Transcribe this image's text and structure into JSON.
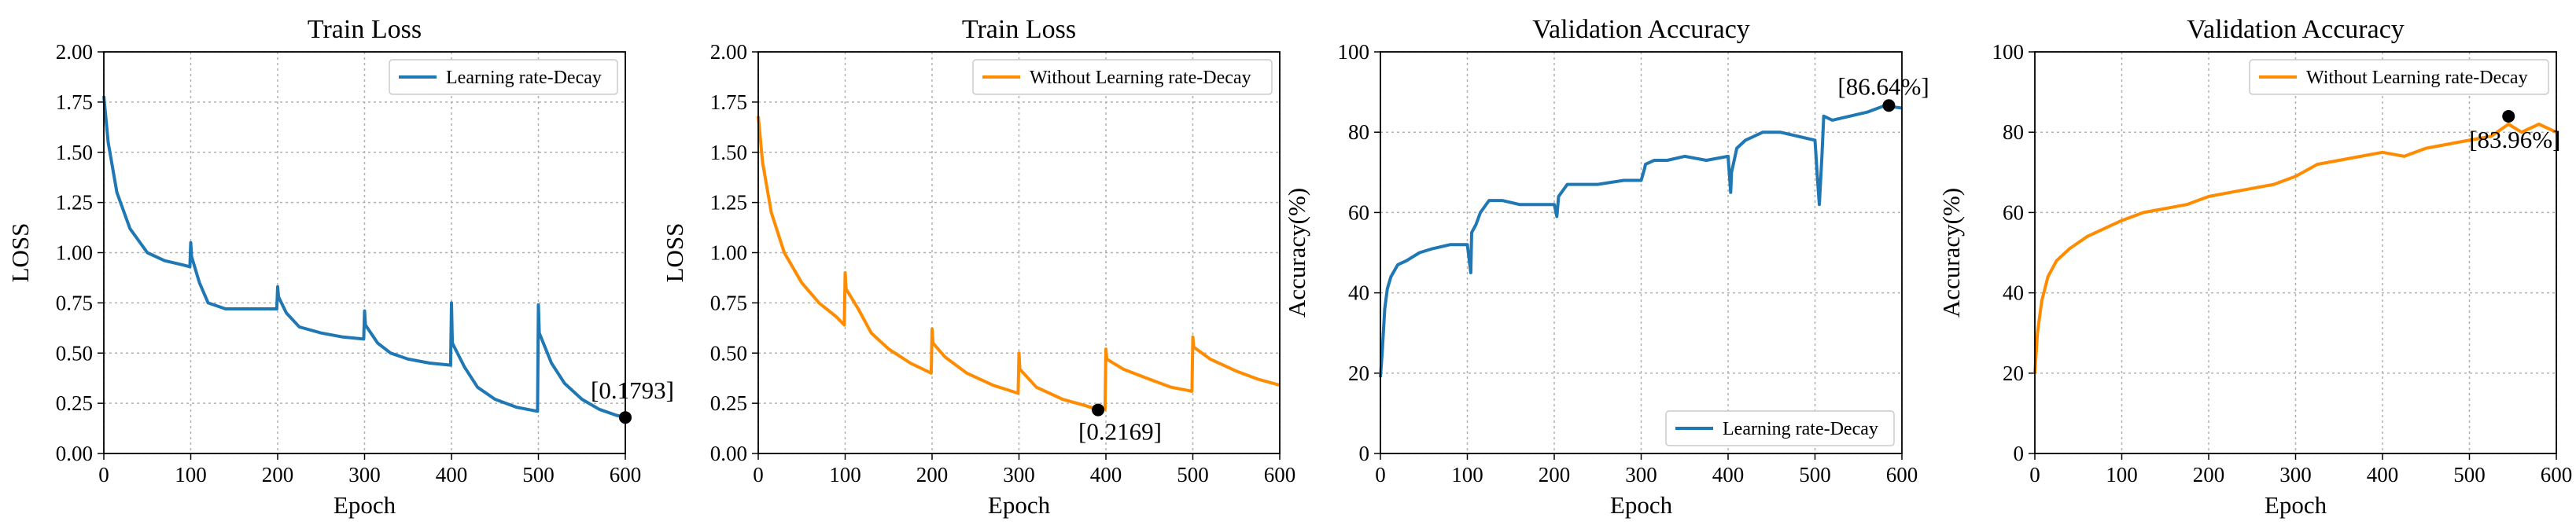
{
  "colors": {
    "blue": "#1f77b4",
    "orange": "#ff8c00",
    "grid": "#b0b0b0",
    "marker": "#000000"
  },
  "chart_data": [
    {
      "type": "line",
      "title": "Train Loss",
      "xlabel": "Epoch",
      "ylabel": "LOSS",
      "xlim": [
        0,
        600
      ],
      "ylim": [
        0,
        2.0
      ],
      "xticks": [
        "0",
        "100",
        "200",
        "300",
        "400",
        "500",
        "600"
      ],
      "yticks": [
        "0.00",
        "0.25",
        "0.50",
        "0.75",
        "1.00",
        "1.25",
        "1.50",
        "1.75",
        "2.00"
      ],
      "grid": true,
      "legend_position": "top-right",
      "series": [
        {
          "name": "Learning rate-Decay",
          "color": "#1f77b4",
          "x": [
            0,
            5,
            15,
            30,
            50,
            70,
            90,
            99,
            100,
            101,
            110,
            120,
            140,
            160,
            180,
            199,
            200,
            201,
            210,
            225,
            250,
            275,
            299,
            300,
            301,
            315,
            330,
            350,
            375,
            399,
            400,
            401,
            415,
            430,
            450,
            475,
            499,
            500,
            501,
            515,
            530,
            550,
            570,
            590,
            600
          ],
          "y": [
            1.78,
            1.55,
            1.3,
            1.12,
            1.0,
            0.96,
            0.94,
            0.93,
            1.05,
            0.98,
            0.85,
            0.75,
            0.72,
            0.72,
            0.72,
            0.72,
            0.83,
            0.78,
            0.7,
            0.63,
            0.6,
            0.58,
            0.57,
            0.71,
            0.64,
            0.55,
            0.5,
            0.47,
            0.45,
            0.44,
            0.75,
            0.55,
            0.43,
            0.33,
            0.27,
            0.23,
            0.21,
            0.74,
            0.6,
            0.45,
            0.35,
            0.27,
            0.22,
            0.19,
            0.18
          ]
        }
      ],
      "annotations": [
        {
          "x": 600,
          "y": 0.1793,
          "text": "[0.1793]"
        }
      ]
    },
    {
      "type": "line",
      "title": "Train Loss",
      "xlabel": "Epoch",
      "ylabel": "LOSS",
      "xlim": [
        0,
        600
      ],
      "ylim": [
        0,
        2.0
      ],
      "xticks": [
        "0",
        "100",
        "200",
        "300",
        "400",
        "500",
        "600"
      ],
      "yticks": [
        "0.00",
        "0.25",
        "0.50",
        "0.75",
        "1.00",
        "1.25",
        "1.50",
        "1.75",
        "2.00"
      ],
      "grid": true,
      "legend_position": "top-right",
      "series": [
        {
          "name": "Without Learning rate-Decay",
          "color": "#ff8c00",
          "x": [
            0,
            5,
            15,
            30,
            50,
            70,
            90,
            99,
            100,
            101,
            115,
            130,
            150,
            175,
            199,
            200,
            201,
            215,
            240,
            270,
            299,
            300,
            301,
            320,
            350,
            375,
            390,
            399,
            400,
            401,
            420,
            450,
            475,
            499,
            500,
            501,
            520,
            550,
            575,
            600
          ],
          "y": [
            1.68,
            1.45,
            1.2,
            1.0,
            0.85,
            0.75,
            0.68,
            0.64,
            0.9,
            0.82,
            0.72,
            0.6,
            0.52,
            0.45,
            0.4,
            0.62,
            0.55,
            0.48,
            0.4,
            0.34,
            0.3,
            0.5,
            0.42,
            0.33,
            0.27,
            0.24,
            0.22,
            0.22,
            0.52,
            0.47,
            0.42,
            0.37,
            0.33,
            0.31,
            0.58,
            0.53,
            0.47,
            0.41,
            0.37,
            0.34
          ]
        }
      ],
      "annotations": [
        {
          "x": 391,
          "y": 0.2169,
          "text": "[0.2169]"
        }
      ]
    },
    {
      "type": "line",
      "title": "Validation Accuracy",
      "xlabel": "Epoch",
      "ylabel": "Accuracy(%)",
      "xlim": [
        0,
        600
      ],
      "ylim": [
        0,
        100
      ],
      "xticks": [
        "0",
        "100",
        "200",
        "300",
        "400",
        "500",
        "600"
      ],
      "yticks": [
        "0",
        "20",
        "40",
        "60",
        "80",
        "100"
      ],
      "grid": true,
      "legend_position": "bottom-right",
      "series": [
        {
          "name": "Learning rate-Decay",
          "color": "#1f77b4",
          "x": [
            0,
            2,
            5,
            8,
            12,
            20,
            30,
            45,
            60,
            80,
            100,
            104,
            105,
            110,
            115,
            125,
            140,
            160,
            180,
            200,
            203,
            205,
            215,
            230,
            250,
            280,
            300,
            304,
            305,
            315,
            330,
            350,
            375,
            400,
            403,
            404,
            410,
            420,
            440,
            460,
            480,
            500,
            503,
            505,
            508,
            510,
            520,
            540,
            560,
            580,
            600
          ],
          "y": [
            19,
            25,
            36,
            41,
            44,
            47,
            48,
            50,
            51,
            52,
            52,
            45,
            55,
            57,
            60,
            63,
            63,
            62,
            62,
            62,
            59,
            64,
            67,
            67,
            67,
            68,
            68,
            71,
            72,
            73,
            73,
            74,
            73,
            74,
            65,
            70,
            76,
            78,
            80,
            80,
            79,
            78,
            68,
            62,
            74,
            84,
            83,
            84,
            85,
            86.6,
            86
          ]
        }
      ],
      "annotations": [
        {
          "x": 585,
          "y": 86.64,
          "text": "[86.64%]"
        }
      ]
    },
    {
      "type": "line",
      "title": "Validation Accuracy",
      "xlabel": "Epoch",
      "ylabel": "Accuracy(%)",
      "xlim": [
        0,
        600
      ],
      "ylim": [
        0,
        100
      ],
      "xticks": [
        "0",
        "100",
        "200",
        "300",
        "400",
        "500",
        "600"
      ],
      "yticks": [
        "0",
        "20",
        "40",
        "60",
        "80",
        "100"
      ],
      "grid": true,
      "legend_position": "top-right",
      "series": [
        {
          "name": "Without Learning rate-Decay",
          "color": "#ff8c00",
          "x": [
            0,
            3,
            8,
            15,
            25,
            40,
            60,
            80,
            100,
            125,
            150,
            175,
            200,
            225,
            250,
            275,
            300,
            325,
            350,
            375,
            400,
            425,
            450,
            475,
            500,
            525,
            545,
            560,
            580,
            600
          ],
          "y": [
            20,
            30,
            38,
            44,
            48,
            51,
            54,
            56,
            58,
            60,
            61,
            62,
            64,
            65,
            66,
            67,
            69,
            72,
            73,
            74,
            75,
            74,
            76,
            77,
            78,
            79,
            82,
            80,
            82,
            80
          ]
        }
      ],
      "annotations": [
        {
          "x": 545,
          "y": 83.96,
          "text": "[83.96%]"
        }
      ]
    }
  ]
}
